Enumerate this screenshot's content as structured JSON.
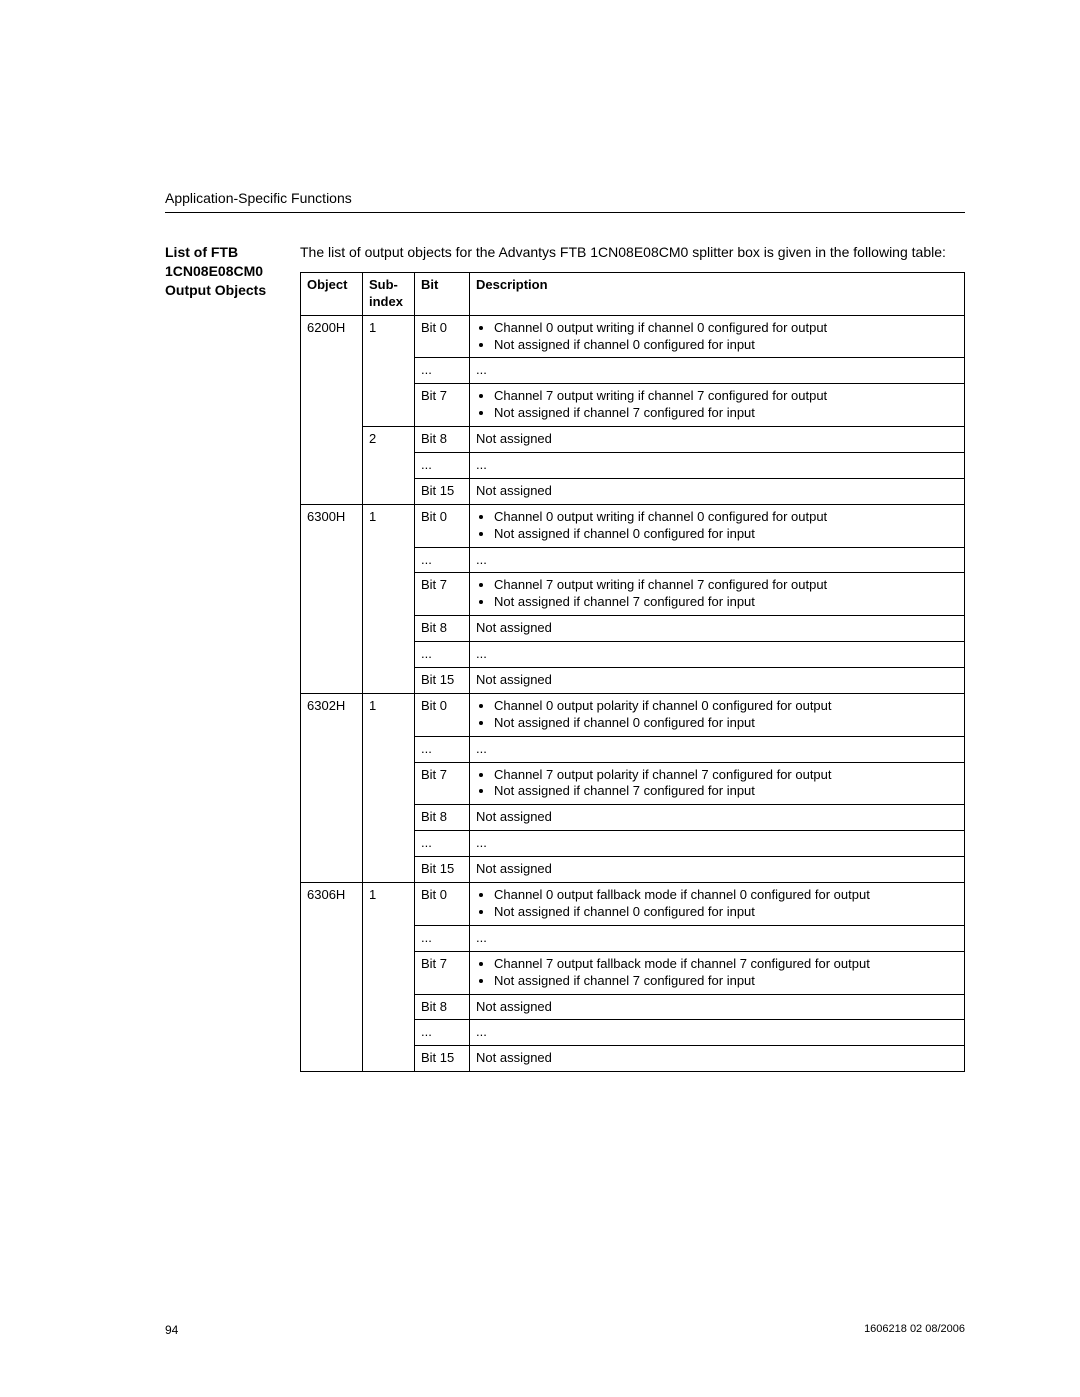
{
  "header": {
    "section": "Application-Specific Functions"
  },
  "sideHeading": {
    "line1": "List of FTB",
    "line2": "1CN08E08CM0",
    "line3": "Output Objects"
  },
  "intro": "The list of output objects for the Advantys FTB 1CN08E08CM0 splitter box is given in the following table:",
  "columns": {
    "object": "Object",
    "subindex_l1": "Sub-",
    "subindex_l2": "index",
    "bit": "Bit",
    "description": "Description"
  },
  "desc_text": {
    "ch0_out_write": "Channel 0 output writing if channel 0 configured for output",
    "ch0_not_assigned_input": "Not assigned if channel 0 configured for input",
    "ch7_out_write": "Channel 7 output writing if channel 7 configured for output",
    "ch7_not_assigned_input": "Not assigned if channel 7 configured for input",
    "ch0_out_polarity": "Channel 0 output polarity if channel 0 configured for output",
    "ch7_out_polarity": "Channel 7 output polarity if channel 7 configured for output",
    "ch0_out_fallback": "Channel 0 output fallback mode if channel 0 configured for output",
    "ch7_out_fallback": "Channel 7 output fallback mode if channel 7 configured for output",
    "not_assigned": "Not assigned",
    "ellipsis": "..."
  },
  "bits": {
    "b0": "Bit 0",
    "b7": "Bit 7",
    "b8": "Bit 8",
    "b15": "Bit 15",
    "ell": "..."
  },
  "objects": {
    "o6200": "6200H",
    "o6300": "6300H",
    "o6302": "6302H",
    "o6306": "6306H"
  },
  "subidx": {
    "s1": "1",
    "s2": "2"
  },
  "footer": {
    "page": "94",
    "docref": "1606218 02 08/2006"
  }
}
